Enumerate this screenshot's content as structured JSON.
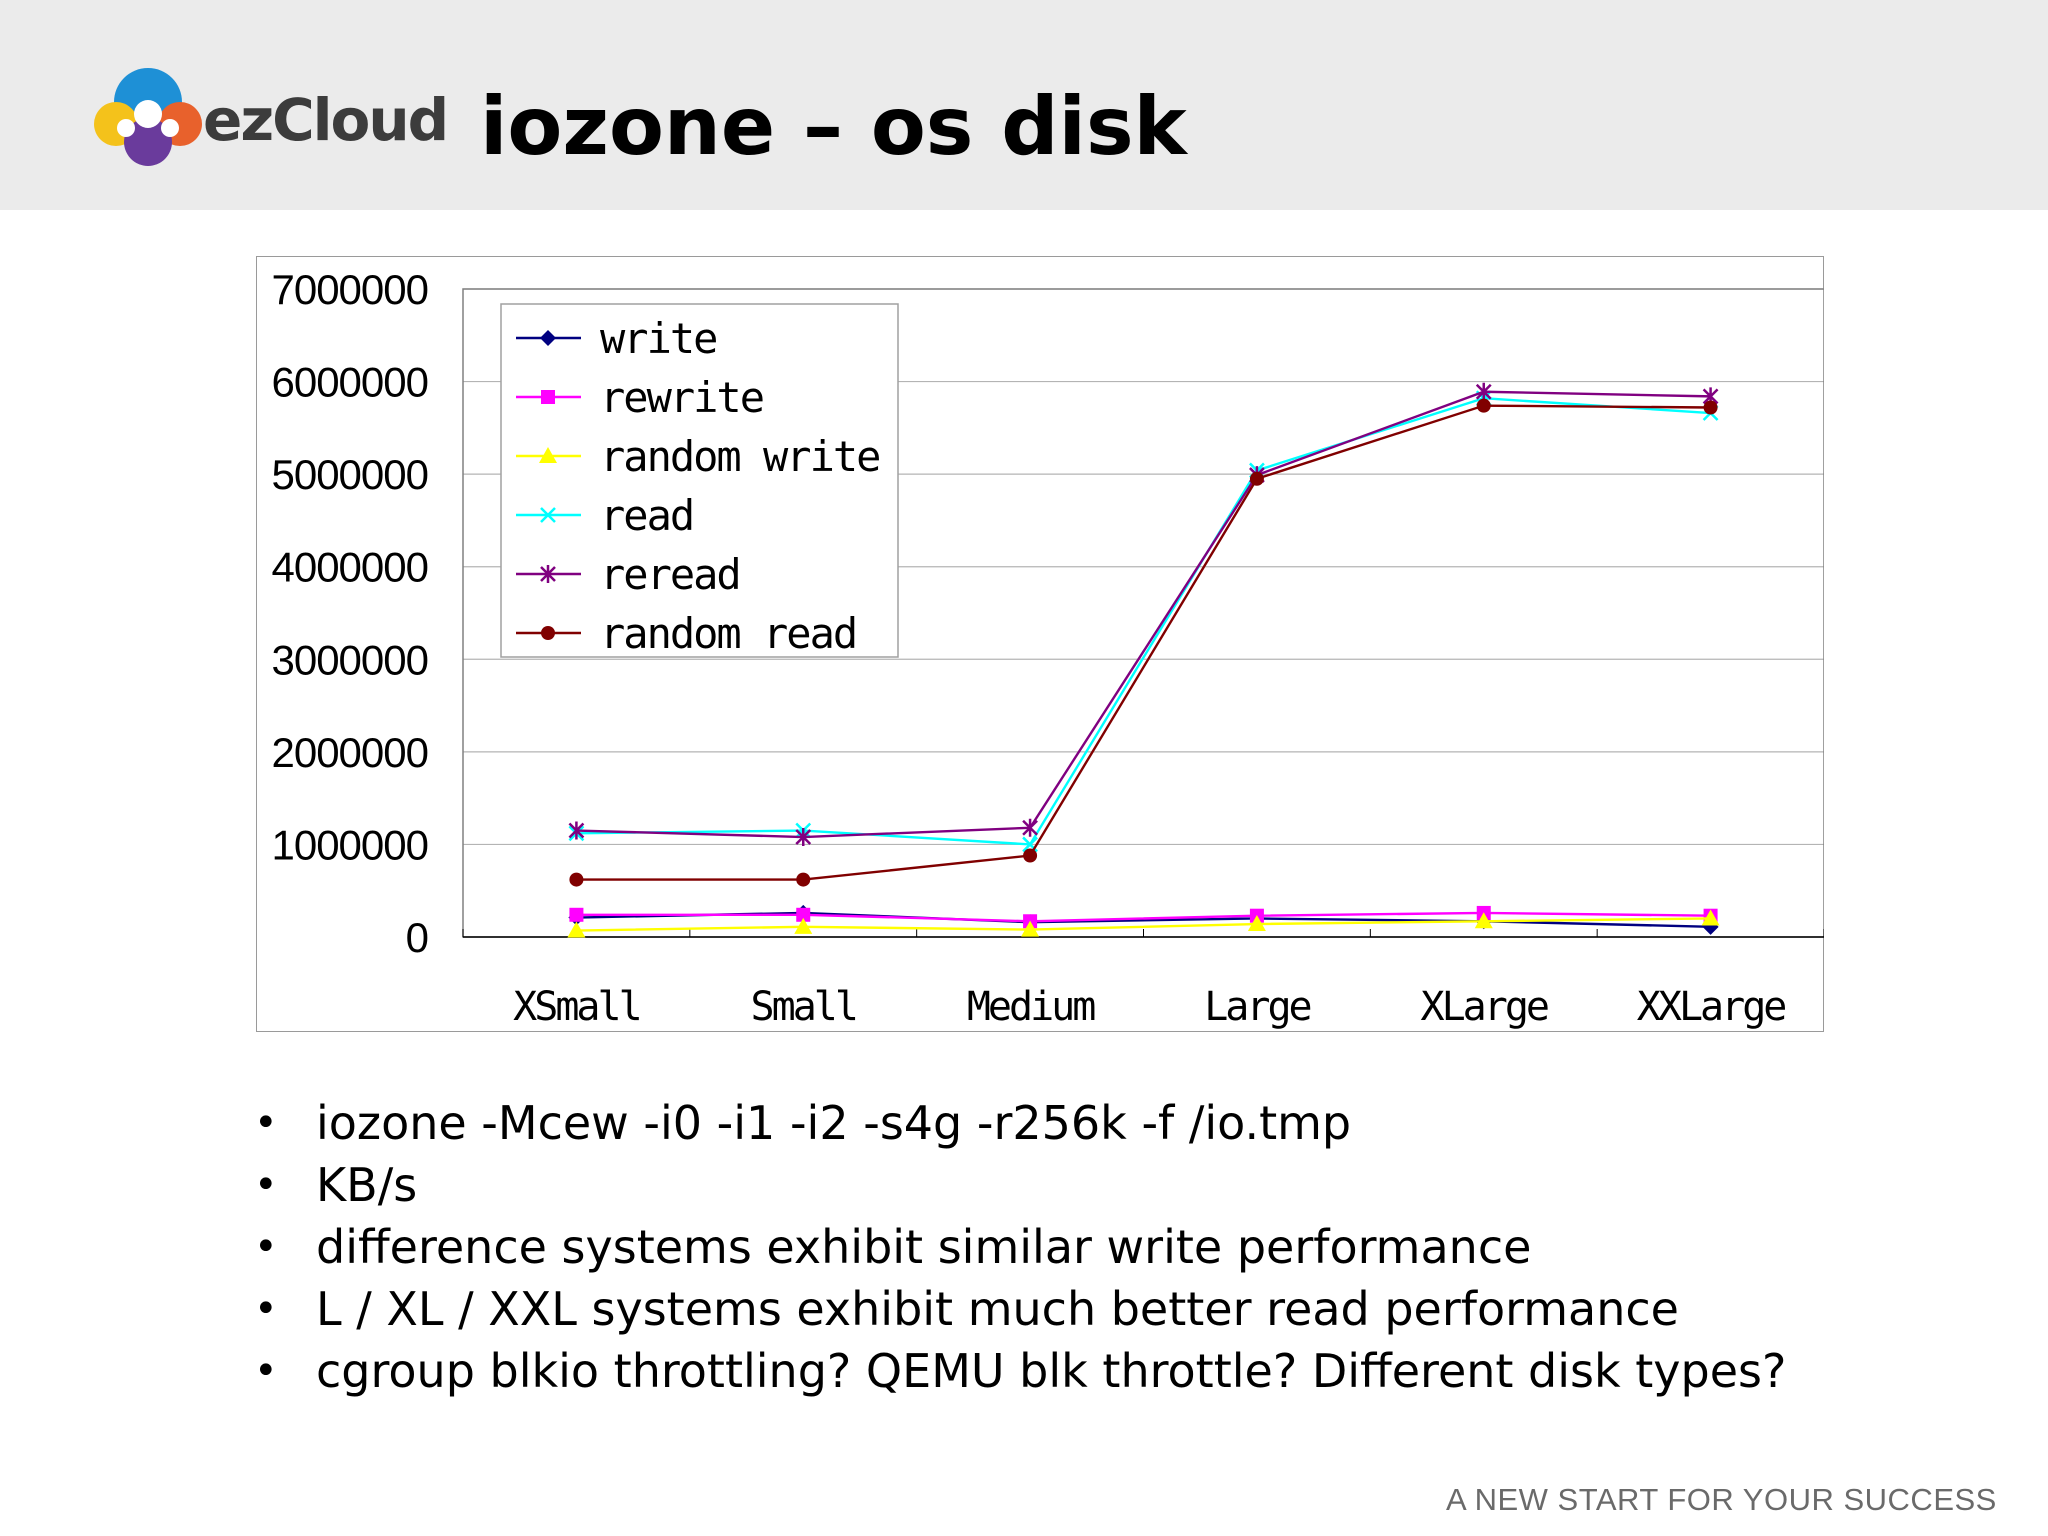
{
  "header": {
    "brand": "ezCloud",
    "title": "iozone – os disk"
  },
  "chart_data": {
    "type": "line",
    "title": "",
    "xlabel": "",
    "ylabel": "",
    "categories": [
      "XSmall",
      "Small",
      "Medium",
      "Large",
      "XLarge",
      "XXLarge"
    ],
    "ylim": [
      0,
      7000000
    ],
    "yticks": [
      0,
      1000000,
      2000000,
      3000000,
      4000000,
      5000000,
      6000000,
      7000000
    ],
    "ytick_labels": [
      "0",
      "1000000",
      "2000000",
      "3000000",
      "4000000",
      "5000000",
      "6000000",
      "7000000"
    ],
    "grid": "horizontal",
    "legend_position": "top-left",
    "series": [
      {
        "name": "write",
        "color": "#000080",
        "marker": "diamond",
        "values": [
          210000,
          260000,
          160000,
          200000,
          170000,
          110000
        ]
      },
      {
        "name": "rewrite",
        "color": "#ff00ff",
        "marker": "square",
        "values": [
          240000,
          240000,
          170000,
          230000,
          260000,
          230000
        ]
      },
      {
        "name": "random write",
        "color": "#ffff00",
        "marker": "triangle",
        "values": [
          70000,
          110000,
          80000,
          140000,
          170000,
          200000
        ]
      },
      {
        "name": "read",
        "color": "#00ffff",
        "marker": "x",
        "values": [
          1120000,
          1150000,
          1000000,
          5040000,
          5820000,
          5660000
        ]
      },
      {
        "name": "reread",
        "color": "#800080",
        "marker": "star",
        "values": [
          1150000,
          1080000,
          1180000,
          4990000,
          5890000,
          5840000
        ]
      },
      {
        "name": "random read",
        "color": "#800000",
        "marker": "circle",
        "values": [
          620000,
          620000,
          880000,
          4950000,
          5740000,
          5720000
        ]
      }
    ]
  },
  "bullets": [
    "iozone -Mcew -i0 -i1 -i2 -s4g -r256k -f /io.tmp",
    "KB/s",
    "difference systems exhibit similar write performance",
    "L / XL / XXL systems exhibit much better read performance",
    "cgroup blkio throttling? QEMU blk throttle? Different disk types?"
  ],
  "bullet_symbol": "•",
  "footer": {
    "tagline": "A NEW START FOR YOUR SUCCESS"
  }
}
